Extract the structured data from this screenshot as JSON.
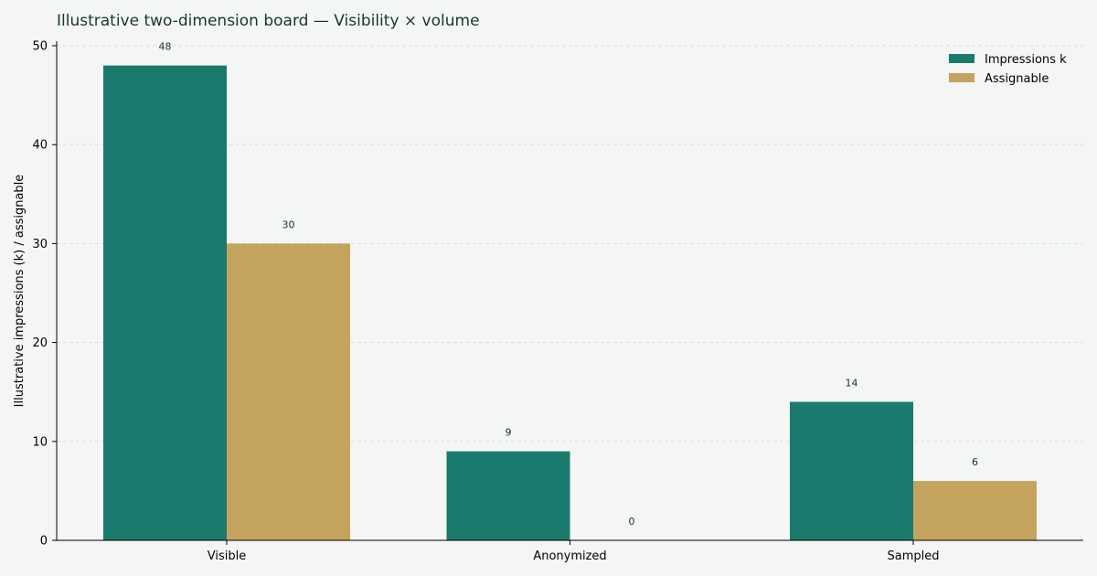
{
  "chart_data": {
    "type": "bar",
    "title": "Illustrative two-dimension board — Visibility × volume",
    "xlabel": "",
    "ylabel": "Illustrative impressions (k) / assignable",
    "categories": [
      "Visible",
      "Anonymized",
      "Sampled"
    ],
    "series": [
      {
        "name": "Impressions k",
        "values": [
          48,
          9,
          14
        ],
        "color": "#1b7a6e"
      },
      {
        "name": "Assignable",
        "values": [
          30,
          0,
          6
        ],
        "color": "#c4a45c"
      }
    ],
    "ylim": [
      0,
      50
    ],
    "yticks": [
      0,
      10,
      20,
      30,
      40,
      50
    ],
    "grid": true,
    "legend_position": "top-right"
  }
}
